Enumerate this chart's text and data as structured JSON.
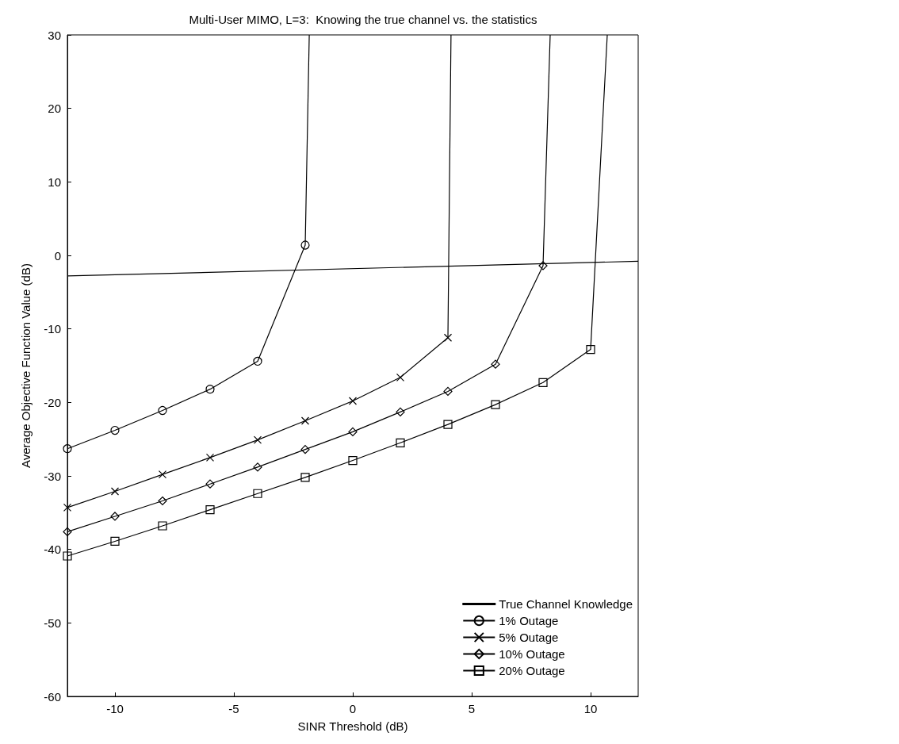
{
  "chart_data": {
    "type": "line",
    "title": "Multi-User MIMO, L=3:  Knowing the true channel vs. the statistics",
    "xlabel": "SINR Threshold (dB)",
    "ylabel": "Average Objective Function Value (dB)",
    "xlim": [
      -12,
      12
    ],
    "xticks": [
      -10,
      -5,
      0,
      5,
      10
    ],
    "ylim": [
      -60,
      30
    ],
    "yticks": [
      -60,
      -50,
      -40,
      -30,
      -20,
      -10,
      0,
      10,
      20,
      30
    ],
    "grid": false,
    "legend": "bottom right",
    "series": [
      {
        "name": "True Channel Knowledge",
        "color": "#000000",
        "marker": "none",
        "x": [
          -12,
          12
        ],
        "values": [
          -2.8,
          -0.8
        ]
      },
      {
        "name": "1% Outage",
        "color": "#000000",
        "marker": "circle",
        "x": [
          -12,
          -10,
          -8,
          -6,
          -4,
          -2,
          -1.83
        ],
        "values": [
          -26.3,
          -23.8,
          -21.1,
          -18.2,
          -14.4,
          1.4,
          30
        ]
      },
      {
        "name": "5% Outage",
        "color": "#000000",
        "marker": "cross",
        "x": [
          -12,
          -10,
          -8,
          -6,
          -4,
          -2,
          0,
          2,
          4,
          4.13
        ],
        "values": [
          -34.3,
          -32.1,
          -29.8,
          -27.5,
          -25.1,
          -22.5,
          -19.8,
          -16.6,
          -11.2,
          30
        ]
      },
      {
        "name": "10% Outage",
        "color": "#000000",
        "marker": "diamond",
        "x": [
          -12,
          -10,
          -8,
          -6,
          -4,
          -2,
          0,
          2,
          4,
          6,
          8,
          8.3
        ],
        "values": [
          -37.6,
          -35.5,
          -33.4,
          -31.1,
          -28.8,
          -26.4,
          -24.0,
          -21.3,
          -18.5,
          -14.8,
          -1.4,
          30
        ]
      },
      {
        "name": "20% Outage",
        "color": "#000000",
        "marker": "square",
        "x": [
          -12,
          -10,
          -8,
          -6,
          -4,
          -2,
          0,
          2,
          4,
          6,
          8,
          10,
          10.7
        ],
        "values": [
          -40.9,
          -38.9,
          -36.8,
          -34.6,
          -32.4,
          -30.2,
          -27.9,
          -25.5,
          -23.0,
          -20.3,
          -17.3,
          -12.8,
          30
        ]
      }
    ]
  }
}
